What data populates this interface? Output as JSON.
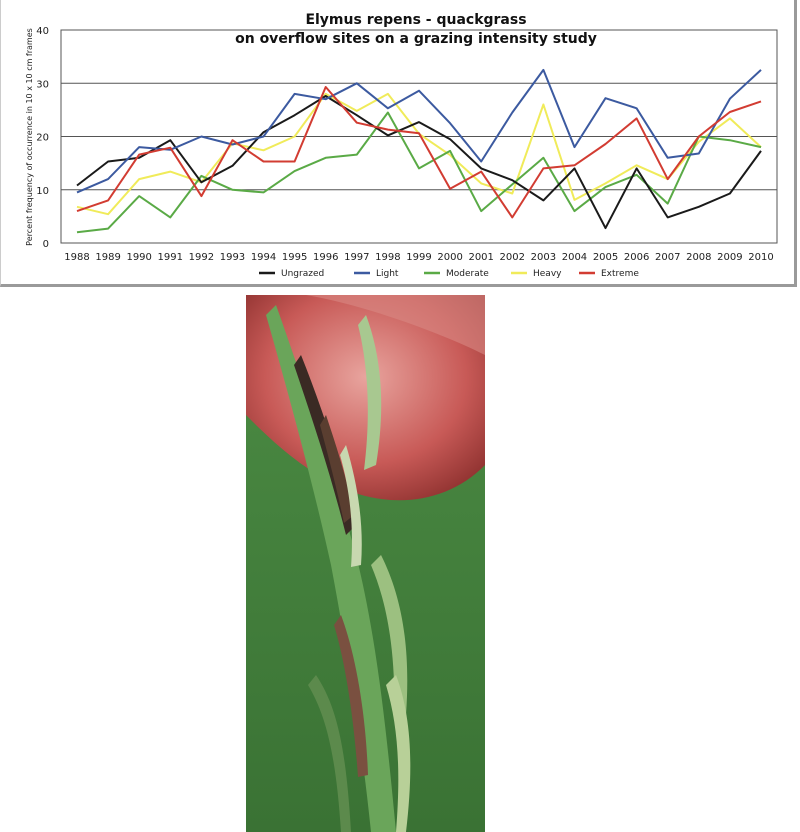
{
  "colors": {
    "Ungrazed": "#1a1a1a",
    "Light": "#3c5aa0",
    "Moderate": "#5aaa46",
    "Heavy": "#f0eb5a",
    "Extreme": "#d23c32"
  },
  "chart_data": {
    "type": "line",
    "title_line1": "Elymus repens  -  quackgrass",
    "title_line2": "on overflow sites on a grazing intensity study",
    "ylabel": "Percent frequency of occurrence in 10 x 10 cm frames",
    "xlabel": "",
    "ylim": [
      0,
      40
    ],
    "yticks": [
      "0",
      "10",
      "20",
      "30",
      "40"
    ],
    "yticks_values": [
      0,
      10,
      20,
      30,
      40
    ],
    "grid": "horizontal",
    "legend_position": "bottom",
    "x": [
      "1988",
      "1989",
      "1990",
      "1991",
      "1992",
      "1993",
      "1994",
      "1995",
      "1996",
      "1997",
      "1998",
      "1999",
      "2000",
      "2001",
      "2002",
      "2003",
      "2004",
      "2005",
      "2006",
      "2007",
      "2008",
      "2009",
      "2010"
    ],
    "series": [
      {
        "name": "Ungrazed",
        "values": [
          10.8,
          15.3,
          16.0,
          19.3,
          11.4,
          14.5,
          20.8,
          24.0,
          27.6,
          24.0,
          20.2,
          22.7,
          19.5,
          14.0,
          11.8,
          8.0,
          14.0,
          2.8,
          14.0,
          4.8,
          6.8,
          9.3,
          17.3
        ]
      },
      {
        "name": "Light",
        "values": [
          9.5,
          12.0,
          18.0,
          17.5,
          20.0,
          18.5,
          20.0,
          28.0,
          27.0,
          30.0,
          25.3,
          28.6,
          22.5,
          15.3,
          24.5,
          32.5,
          18.0,
          27.2,
          25.3,
          16.0,
          16.8,
          27.1,
          32.5
        ]
      },
      {
        "name": "Moderate",
        "values": [
          2.0,
          2.7,
          8.8,
          4.8,
          12.6,
          10.0,
          9.5,
          13.5,
          16.0,
          16.6,
          24.5,
          14.0,
          17.3,
          6.0,
          11.0,
          16.0,
          6.0,
          10.5,
          12.8,
          7.4,
          20.0,
          19.3,
          18.0
        ]
      },
      {
        "name": "Heavy",
        "values": [
          6.8,
          5.4,
          12.0,
          13.4,
          11.4,
          18.7,
          17.4,
          20.0,
          28.0,
          24.8,
          28.0,
          20.5,
          16.5,
          11.2,
          9.3,
          26.0,
          8.1,
          11.2,
          14.6,
          12.0,
          19.0,
          23.4,
          18.0
        ]
      },
      {
        "name": "Extreme",
        "values": [
          6.0,
          8.0,
          16.6,
          17.9,
          8.8,
          19.3,
          15.3,
          15.3,
          29.3,
          22.6,
          21.3,
          20.6,
          10.2,
          13.4,
          4.8,
          14.0,
          14.6,
          18.6,
          23.4,
          12.0,
          20.0,
          24.6,
          26.6
        ]
      }
    ],
    "legend": [
      "Ungrazed",
      "Light",
      "Moderate",
      "Heavy",
      "Extreme"
    ]
  }
}
